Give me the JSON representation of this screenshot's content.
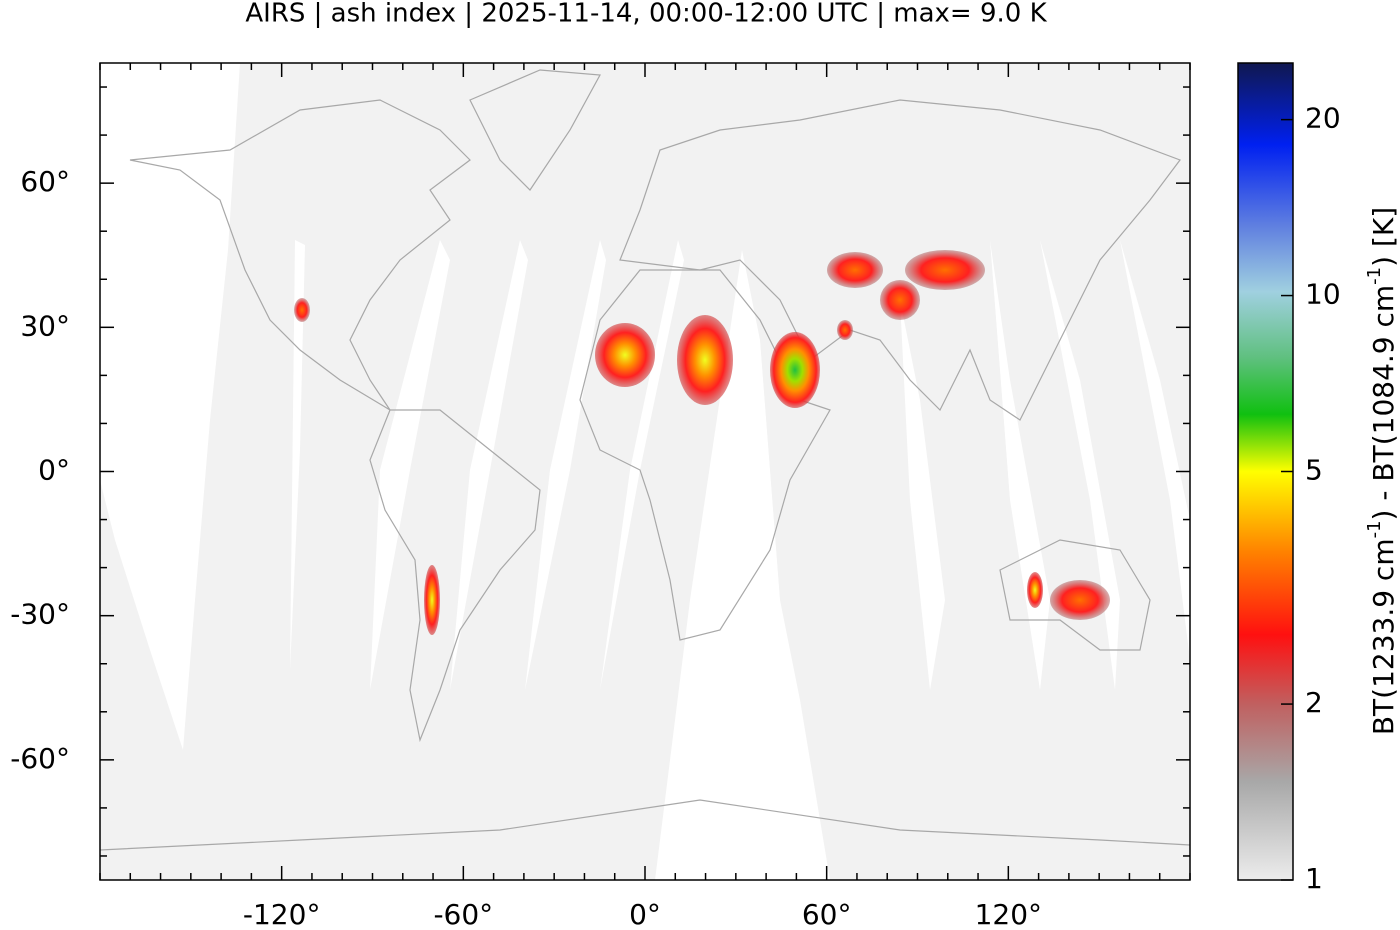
{
  "chart_data": {
    "type": "map",
    "title": "AIRS | ash index | 2025-11-14, 00:00-12:00 UTC | max= 9.0 K",
    "xlim": [
      -180,
      180
    ],
    "ylim": [
      -85,
      85
    ],
    "xticks": [
      {
        "value": -120,
        "label": "-120°"
      },
      {
        "value": -60,
        "label": "-60°"
      },
      {
        "value": 0,
        "label": "0°"
      },
      {
        "value": 60,
        "label": "60°"
      },
      {
        "value": 120,
        "label": "120°"
      }
    ],
    "yticks": [
      {
        "value": -60,
        "label": "-60°"
      },
      {
        "value": -30,
        "label": "-30°"
      },
      {
        "value": 0,
        "label": "0°"
      },
      {
        "value": 30,
        "label": "30°"
      },
      {
        "value": 60,
        "label": "60°"
      }
    ],
    "colorbar": {
      "label": [
        "BT(1233.9 cm",
        "-1",
        ") - BT(1084.9 cm",
        "-1",
        ") [K]"
      ],
      "lim": [
        1,
        25
      ],
      "log_scale": true,
      "ticks": [
        1,
        2,
        5,
        10,
        20
      ]
    }
  }
}
